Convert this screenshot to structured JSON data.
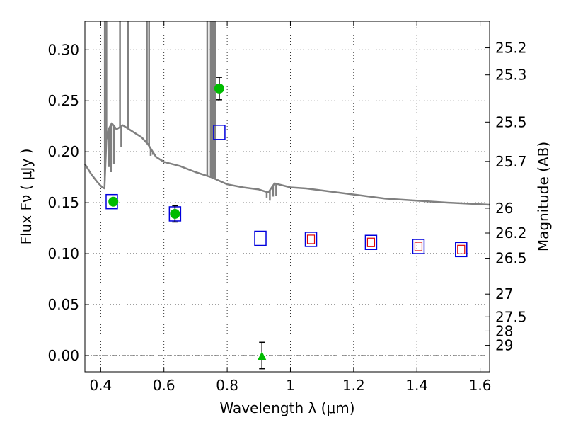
{
  "chart_data": {
    "type": "scatter",
    "xlabel": "Wavelength  λ (μm)",
    "ylabel": "Flux  Fν  ( μJy )",
    "ylabel_right": "Magnitude (AB)",
    "xlim": [
      0.35,
      1.63
    ],
    "ylim": [
      -0.016,
      0.328
    ],
    "grid": true,
    "x_ticks": [
      {
        "value": 0.4,
        "label": "0.4"
      },
      {
        "value": 0.6,
        "label": "0.6"
      },
      {
        "value": 0.8,
        "label": "0.8"
      },
      {
        "value": 1.0,
        "label": "1"
      },
      {
        "value": 1.2,
        "label": "1.2"
      },
      {
        "value": 1.4,
        "label": "1.4"
      },
      {
        "value": 1.6,
        "label": "1.6"
      }
    ],
    "y_ticks": [
      {
        "value": 0.0,
        "label": "0.00"
      },
      {
        "value": 0.05,
        "label": "0.05"
      },
      {
        "value": 0.1,
        "label": "0.10"
      },
      {
        "value": 0.15,
        "label": "0.15"
      },
      {
        "value": 0.2,
        "label": "0.20"
      },
      {
        "value": 0.25,
        "label": "0.25"
      },
      {
        "value": 0.3,
        "label": "0.30"
      }
    ],
    "mag_ticks": [
      {
        "flux": 0.3019,
        "label": "25.2"
      },
      {
        "flux": 0.2754,
        "label": "25.3"
      },
      {
        "flux": 0.2291,
        "label": "25.5"
      },
      {
        "flux": 0.1905,
        "label": "25.7"
      },
      {
        "flux": 0.1446,
        "label": "26"
      },
      {
        "flux": 0.1202,
        "label": "26.2"
      },
      {
        "flux": 0.0955,
        "label": "26.5"
      },
      {
        "flux": 0.0603,
        "label": "27"
      },
      {
        "flux": 0.038,
        "label": "27.5"
      },
      {
        "flux": 0.024,
        "label": "28"
      },
      {
        "flux": 0.01,
        "label": "29"
      }
    ],
    "colors": {
      "model": "#808080",
      "detection": "#00bb00",
      "model_band_blue": "#0000dd",
      "model_band_red": "#dd0000",
      "errorbar": "#000000"
    },
    "model_spectrum": {
      "x": [
        0.35,
        0.37,
        0.39,
        0.405,
        0.412,
        0.418,
        0.425,
        0.435,
        0.45,
        0.47,
        0.5,
        0.53,
        0.55,
        0.575,
        0.6,
        0.65,
        0.7,
        0.75,
        0.8,
        0.85,
        0.9,
        0.93,
        0.95,
        1.0,
        1.05,
        1.1,
        1.2,
        1.3,
        1.4,
        1.5,
        1.63
      ],
      "y": [
        0.188,
        0.178,
        0.17,
        0.165,
        0.164,
        0.212,
        0.222,
        0.228,
        0.222,
        0.226,
        0.22,
        0.214,
        0.207,
        0.195,
        0.19,
        0.186,
        0.18,
        0.175,
        0.168,
        0.165,
        0.163,
        0.16,
        0.169,
        0.165,
        0.164,
        0.162,
        0.158,
        0.154,
        0.152,
        0.15,
        0.148
      ]
    },
    "emission_lines": [
      {
        "x": 0.413,
        "top": 0.328
      },
      {
        "x": 0.418,
        "top": 0.328
      },
      {
        "x": 0.461,
        "top": 0.328
      },
      {
        "x": 0.487,
        "top": 0.328
      },
      {
        "x": 0.546,
        "top": 0.328
      },
      {
        "x": 0.553,
        "top": 0.328
      },
      {
        "x": 0.737,
        "top": 0.328
      },
      {
        "x": 0.748,
        "top": 0.328
      },
      {
        "x": 0.755,
        "top": 0.328
      },
      {
        "x": 0.762,
        "top": 0.328
      }
    ],
    "absorption_features": [
      {
        "x": 0.426,
        "bottom": 0.185
      },
      {
        "x": 0.433,
        "bottom": 0.18
      },
      {
        "x": 0.442,
        "bottom": 0.188
      },
      {
        "x": 0.465,
        "bottom": 0.205
      },
      {
        "x": 0.558,
        "bottom": 0.196
      },
      {
        "x": 0.565,
        "bottom": 0.197
      },
      {
        "x": 0.925,
        "bottom": 0.155
      },
      {
        "x": 0.935,
        "bottom": 0.152
      },
      {
        "x": 0.945,
        "bottom": 0.156
      },
      {
        "x": 0.955,
        "bottom": 0.157
      }
    ],
    "observed": [
      {
        "x": 0.44,
        "y": 0.151,
        "err": 0.0
      },
      {
        "x": 0.635,
        "y": 0.139,
        "err": 0.008
      },
      {
        "x": 0.775,
        "y": 0.262,
        "err": 0.011
      }
    ],
    "upper_limit": {
      "x": 0.91,
      "y": 0.0,
      "err": 0.013
    },
    "model_bands": [
      {
        "x": 0.435,
        "y": 0.151
      },
      {
        "x": 0.635,
        "y": 0.139
      },
      {
        "x": 0.775,
        "y": 0.219
      },
      {
        "x": 0.905,
        "y": 0.115
      },
      {
        "x": 1.065,
        "y": 0.114
      },
      {
        "x": 1.255,
        "y": 0.111
      },
      {
        "x": 1.405,
        "y": 0.107
      },
      {
        "x": 1.54,
        "y": 0.104
      }
    ],
    "red_bands": [
      {
        "x": 1.065,
        "y": 0.114
      },
      {
        "x": 1.255,
        "y": 0.111
      },
      {
        "x": 1.405,
        "y": 0.107
      },
      {
        "x": 1.54,
        "y": 0.104
      }
    ]
  }
}
